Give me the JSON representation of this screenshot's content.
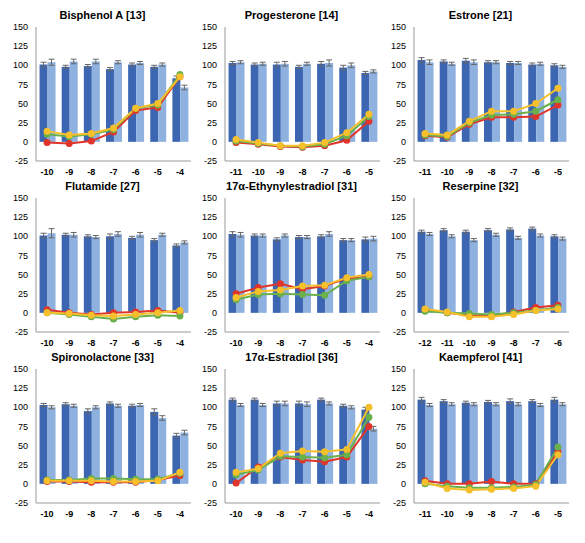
{
  "chart_data": [
    {
      "type": "bar",
      "title": "Bisphenol A [13]",
      "categories": [
        "-10",
        "-9",
        "-8",
        "-7",
        "-6",
        "-5",
        "-4"
      ],
      "ylim": [
        -25,
        150
      ],
      "yticks": [
        -25,
        0,
        25,
        50,
        75,
        100,
        125,
        150
      ],
      "series": [
        {
          "type": "bar",
          "color": "#3d66b2",
          "values": [
            101,
            98,
            99,
            95,
            101,
            98,
            83
          ],
          "errors": [
            3,
            2,
            2,
            2,
            2,
            2,
            3
          ]
        },
        {
          "type": "bar",
          "color": "#8fb1df",
          "values": [
            104,
            105,
            105,
            104,
            103,
            101,
            71
          ],
          "errors": [
            4,
            3,
            3,
            2,
            2,
            2,
            3
          ]
        },
        {
          "type": "line",
          "color": "#e0352b",
          "marker": "circle",
          "values": [
            -1,
            -2,
            1,
            13,
            41,
            45,
            85
          ]
        },
        {
          "type": "line",
          "color": "#6ab04c",
          "marker": "circle",
          "values": [
            10,
            7,
            10,
            16,
            44,
            48,
            88
          ]
        },
        {
          "type": "line",
          "color": "#f5c02c",
          "marker": "circle",
          "values": [
            14,
            9,
            11,
            18,
            44,
            50,
            85
          ]
        }
      ]
    },
    {
      "type": "bar",
      "title": "Progesterone [14]",
      "categories": [
        "-11",
        "-10",
        "-9",
        "-8",
        "-7",
        "-6",
        "-5"
      ],
      "ylim": [
        -25,
        150
      ],
      "yticks": [
        -25,
        0,
        25,
        50,
        75,
        100,
        125,
        150
      ],
      "series": [
        {
          "type": "bar",
          "color": "#3d66b2",
          "values": [
            103,
            101,
            101,
            98,
            102,
            97,
            90
          ],
          "errors": [
            2,
            2,
            3,
            2,
            3,
            3,
            2
          ]
        },
        {
          "type": "bar",
          "color": "#8fb1df",
          "values": [
            104,
            102,
            102,
            102,
            103,
            100,
            92
          ],
          "errors": [
            2,
            2,
            3,
            2,
            4,
            3,
            2
          ]
        },
        {
          "type": "line",
          "color": "#e0352b",
          "marker": "circle",
          "values": [
            -1,
            -3,
            -6,
            -7,
            -5,
            2,
            27
          ]
        },
        {
          "type": "line",
          "color": "#6ab04c",
          "marker": "circle",
          "values": [
            1,
            -2,
            -5,
            -6,
            -3,
            8,
            33
          ]
        },
        {
          "type": "line",
          "color": "#f5c02c",
          "marker": "circle",
          "values": [
            3,
            -1,
            -5,
            -5,
            -1,
            12,
            36
          ]
        }
      ]
    },
    {
      "type": "bar",
      "title": "Estrone [21]",
      "categories": [
        "-11",
        "-10",
        "-9",
        "-8",
        "-7",
        "-6",
        "-5"
      ],
      "ylim": [
        -25,
        150
      ],
      "yticks": [
        -25,
        0,
        25,
        50,
        75,
        100,
        125,
        150
      ],
      "series": [
        {
          "type": "bar",
          "color": "#3d66b2",
          "values": [
            107,
            105,
            106,
            104,
            103,
            101,
            100
          ],
          "errors": [
            3,
            2,
            3,
            2,
            2,
            2,
            2
          ]
        },
        {
          "type": "bar",
          "color": "#8fb1df",
          "values": [
            104,
            102,
            104,
            104,
            103,
            102,
            98
          ],
          "errors": [
            3,
            2,
            3,
            2,
            2,
            2,
            2
          ]
        },
        {
          "type": "line",
          "color": "#e0352b",
          "marker": "circle",
          "values": [
            8,
            6,
            23,
            32,
            32,
            33,
            48
          ]
        },
        {
          "type": "line",
          "color": "#6ab04c",
          "marker": "circle",
          "values": [
            9,
            7,
            25,
            35,
            36,
            40,
            55
          ]
        },
        {
          "type": "line",
          "color": "#f5c02c",
          "marker": "circle",
          "values": [
            11,
            9,
            27,
            40,
            40,
            50,
            70
          ]
        }
      ]
    },
    {
      "type": "bar",
      "title": "Flutamide [27]",
      "categories": [
        "-10",
        "-9",
        "-8",
        "-7",
        "-6",
        "-5",
        "-4"
      ],
      "ylim": [
        -25,
        150
      ],
      "yticks": [
        -25,
        0,
        25,
        50,
        75,
        100,
        125,
        150
      ],
      "series": [
        {
          "type": "bar",
          "color": "#3d66b2",
          "values": [
            101,
            102,
            100,
            100,
            98,
            95,
            88
          ],
          "errors": [
            3,
            2,
            2,
            3,
            2,
            2,
            2
          ]
        },
        {
          "type": "bar",
          "color": "#8fb1df",
          "values": [
            104,
            102,
            99,
            103,
            102,
            102,
            92
          ],
          "errors": [
            6,
            3,
            2,
            3,
            3,
            2,
            2
          ]
        },
        {
          "type": "line",
          "color": "#e0352b",
          "marker": "circle",
          "values": [
            4,
            0,
            -2,
            0,
            1,
            3,
            0
          ]
        },
        {
          "type": "line",
          "color": "#6ab04c",
          "marker": "circle",
          "values": [
            0,
            -2,
            -5,
            -8,
            -5,
            -3,
            -4
          ]
        },
        {
          "type": "line",
          "color": "#f5c02c",
          "marker": "circle",
          "values": [
            0,
            -1,
            -3,
            -4,
            -2,
            0,
            3
          ]
        }
      ]
    },
    {
      "type": "bar",
      "title": "17α-Ethynylestradiol [31]",
      "categories": [
        "-10",
        "-9",
        "-8",
        "-7",
        "-6",
        "-5",
        "-4"
      ],
      "ylim": [
        -25,
        150
      ],
      "yticks": [
        -25,
        0,
        25,
        50,
        75,
        100,
        125,
        150
      ],
      "series": [
        {
          "type": "bar",
          "color": "#3d66b2",
          "values": [
            103,
            101,
            96,
            99,
            100,
            95,
            96
          ],
          "errors": [
            3,
            2,
            2,
            2,
            2,
            2,
            3
          ]
        },
        {
          "type": "bar",
          "color": "#8fb1df",
          "values": [
            102,
            101,
            101,
            99,
            103,
            95,
            97
          ],
          "errors": [
            3,
            2,
            2,
            2,
            3,
            2,
            3
          ]
        },
        {
          "type": "line",
          "color": "#e0352b",
          "marker": "circle",
          "values": [
            25,
            33,
            38,
            31,
            35,
            45,
            47
          ]
        },
        {
          "type": "line",
          "color": "#6ab04c",
          "marker": "circle",
          "values": [
            17,
            24,
            25,
            24,
            23,
            42,
            47
          ]
        },
        {
          "type": "line",
          "color": "#f5c02c",
          "marker": "circle",
          "values": [
            20,
            28,
            30,
            35,
            36,
            46,
            50
          ]
        }
      ]
    },
    {
      "type": "bar",
      "title": "Reserpine [32]",
      "categories": [
        "-12",
        "-11",
        "-10",
        "-9",
        "-8",
        "-7",
        "-6"
      ],
      "ylim": [
        -25,
        150
      ],
      "yticks": [
        -25,
        0,
        25,
        50,
        75,
        100,
        125,
        150
      ],
      "series": [
        {
          "type": "bar",
          "color": "#3d66b2",
          "values": [
            106,
            108,
            106,
            108,
            109,
            110,
            100
          ],
          "errors": [
            2,
            2,
            2,
            2,
            2,
            2,
            2
          ]
        },
        {
          "type": "bar",
          "color": "#8fb1df",
          "values": [
            103,
            100,
            95,
            102,
            98,
            101,
            97
          ],
          "errors": [
            2,
            2,
            2,
            2,
            2,
            2,
            2
          ]
        },
        {
          "type": "line",
          "color": "#e0352b",
          "marker": "circle",
          "values": [
            4,
            0,
            -3,
            -4,
            1,
            7,
            10
          ]
        },
        {
          "type": "line",
          "color": "#6ab04c",
          "marker": "circle",
          "values": [
            2,
            0,
            -1,
            -2,
            0,
            3,
            7
          ]
        },
        {
          "type": "line",
          "color": "#f5c02c",
          "marker": "circle",
          "values": [
            5,
            1,
            -5,
            -5,
            -2,
            3,
            5
          ]
        }
      ]
    },
    {
      "type": "bar",
      "title": "Spironolactone [33]",
      "categories": [
        "-10",
        "-9",
        "-8",
        "-7",
        "-6",
        "-5",
        "-4"
      ],
      "ylim": [
        -25,
        150
      ],
      "yticks": [
        -25,
        0,
        25,
        50,
        75,
        100,
        125,
        150
      ],
      "series": [
        {
          "type": "bar",
          "color": "#3d66b2",
          "values": [
            103,
            104,
            95,
            105,
            102,
            94,
            63
          ],
          "errors": [
            2,
            2,
            3,
            2,
            2,
            4,
            3
          ]
        },
        {
          "type": "bar",
          "color": "#8fb1df",
          "values": [
            100,
            102,
            100,
            102,
            103,
            86,
            67
          ],
          "errors": [
            2,
            2,
            2,
            2,
            2,
            3,
            3
          ]
        },
        {
          "type": "line",
          "color": "#e0352b",
          "marker": "circle",
          "values": [
            3,
            3,
            2,
            2,
            2,
            5,
            11
          ]
        },
        {
          "type": "line",
          "color": "#6ab04c",
          "marker": "circle",
          "values": [
            5,
            5,
            7,
            7,
            6,
            6,
            14
          ]
        },
        {
          "type": "line",
          "color": "#f5c02c",
          "marker": "circle",
          "values": [
            4,
            4,
            4,
            3,
            3,
            4,
            15
          ]
        }
      ]
    },
    {
      "type": "bar",
      "title": "17α-Estradiol [36]",
      "categories": [
        "-10",
        "-9",
        "-8",
        "-7",
        "-6",
        "-5",
        "-4"
      ],
      "ylim": [
        -25,
        150
      ],
      "yticks": [
        -25,
        0,
        25,
        50,
        75,
        100,
        125,
        150
      ],
      "series": [
        {
          "type": "bar",
          "color": "#3d66b2",
          "values": [
            110,
            110,
            105,
            105,
            110,
            102,
            97
          ],
          "errors": [
            2,
            2,
            3,
            3,
            2,
            2,
            3
          ]
        },
        {
          "type": "bar",
          "color": "#8fb1df",
          "values": [
            103,
            103,
            105,
            104,
            105,
            100,
            72
          ],
          "errors": [
            2,
            2,
            3,
            3,
            2,
            2,
            3
          ]
        },
        {
          "type": "line",
          "color": "#e0352b",
          "marker": "circle",
          "values": [
            1,
            22,
            35,
            31,
            29,
            35,
            75
          ]
        },
        {
          "type": "line",
          "color": "#6ab04c",
          "marker": "circle",
          "values": [
            12,
            18,
            36,
            35,
            34,
            38,
            87
          ]
        },
        {
          "type": "line",
          "color": "#f5c02c",
          "marker": "circle",
          "values": [
            15,
            20,
            40,
            43,
            42,
            45,
            100
          ]
        }
      ]
    },
    {
      "type": "bar",
      "title": "Kaempferol [41]",
      "categories": [
        "-11",
        "-10",
        "-9",
        "-8",
        "-7",
        "-6",
        "-5"
      ],
      "ylim": [
        -25,
        150
      ],
      "yticks": [
        -25,
        0,
        25,
        50,
        75,
        100,
        125,
        150
      ],
      "series": [
        {
          "type": "bar",
          "color": "#3d66b2",
          "values": [
            110,
            108,
            106,
            107,
            108,
            108,
            110
          ],
          "errors": [
            3,
            2,
            2,
            2,
            3,
            2,
            3
          ]
        },
        {
          "type": "bar",
          "color": "#8fb1df",
          "values": [
            103,
            104,
            104,
            104,
            104,
            103,
            104
          ],
          "errors": [
            2,
            2,
            2,
            2,
            2,
            2,
            2
          ]
        },
        {
          "type": "line",
          "color": "#e0352b",
          "marker": "circle",
          "values": [
            4,
            0,
            0,
            3,
            0,
            0,
            42
          ]
        },
        {
          "type": "line",
          "color": "#6ab04c",
          "marker": "circle",
          "values": [
            0,
            -3,
            -5,
            -5,
            -4,
            -1,
            48
          ]
        },
        {
          "type": "line",
          "color": "#f5c02c",
          "marker": "circle",
          "values": [
            2,
            -6,
            -8,
            -7,
            -6,
            -3,
            38
          ]
        }
      ]
    }
  ]
}
